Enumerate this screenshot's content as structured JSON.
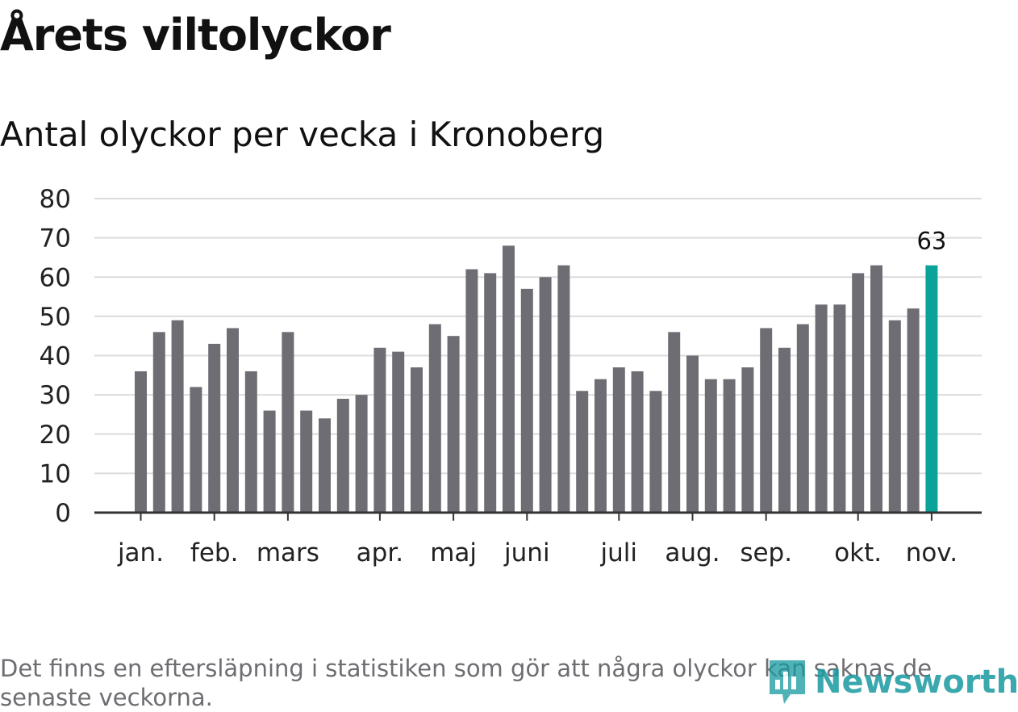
{
  "chart_data": {
    "type": "bar",
    "title": "Årets viltolyckor",
    "subtitle": "Antal olyckor per vecka i Kronoberg",
    "xlabel": "",
    "ylabel": "",
    "ylim": [
      0,
      80
    ],
    "yticks": [
      "0",
      "10",
      "20",
      "30",
      "40",
      "50",
      "60",
      "70",
      "80"
    ],
    "grid": true,
    "values": [
      36,
      46,
      49,
      32,
      43,
      47,
      36,
      26,
      46,
      26,
      24,
      29,
      30,
      42,
      41,
      37,
      48,
      45,
      62,
      61,
      68,
      57,
      60,
      63,
      31,
      34,
      37,
      36,
      31,
      46,
      40,
      34,
      34,
      37,
      47,
      42,
      48,
      53,
      53,
      61,
      63,
      49,
      52,
      63
    ],
    "month_ticks": [
      {
        "label": "jan.",
        "index": 0
      },
      {
        "label": "feb.",
        "index": 4
      },
      {
        "label": "mars",
        "index": 8
      },
      {
        "label": "apr.",
        "index": 13
      },
      {
        "label": "maj",
        "index": 17
      },
      {
        "label": "juni",
        "index": 21
      },
      {
        "label": "juli",
        "index": 26
      },
      {
        "label": "aug.",
        "index": 30
      },
      {
        "label": "sep.",
        "index": 34
      },
      {
        "label": "okt.",
        "index": 39
      },
      {
        "label": "nov.",
        "index": 43
      }
    ],
    "highlight_index": 43,
    "highlight_label": "63",
    "colors": {
      "bar": "#6e6d74",
      "highlight": "#0aa39a",
      "grid": "#dcdcdc",
      "axis": "#333333"
    }
  },
  "note": "Det finns en eftersläpning i statistiken som gör att några olyckor kan saknas de senaste veckorna.",
  "brand": {
    "name": "Newsworthy",
    "color": "#1a9aa0"
  }
}
